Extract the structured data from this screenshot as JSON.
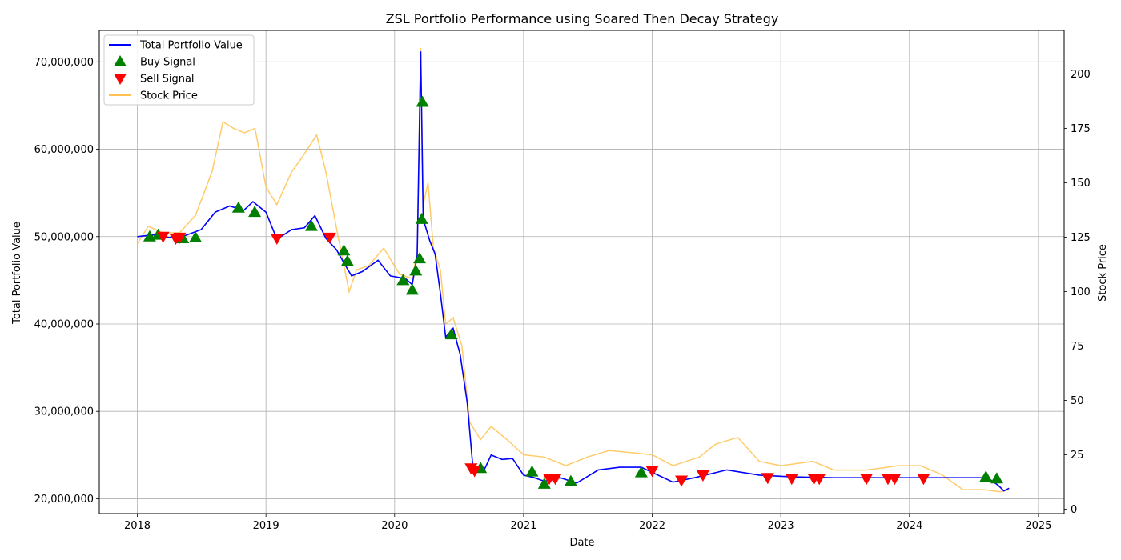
{
  "chart_data": {
    "type": "line",
    "title": "ZSL Portfolio Performance using Soared Then Decay Strategy",
    "xlabel": "Date",
    "ylabel_left": "Total Portfolio Value",
    "ylabel_right": "Stock Price",
    "x_ticks": [
      "2018",
      "2019",
      "2020",
      "2021",
      "2022",
      "2023",
      "2024",
      "2025"
    ],
    "x_range": [
      "2017-09-15",
      "2025-03-15"
    ],
    "y_left_ticks": [
      20000000,
      30000000,
      40000000,
      50000000,
      60000000,
      70000000
    ],
    "y_left_tick_labels": [
      "20,000,000",
      "30,000,000",
      "40,000,000",
      "50,000,000",
      "60,000,000",
      "70,000,000"
    ],
    "y_left_range": [
      18300000,
      73600000
    ],
    "y_right_ticks": [
      0,
      25,
      50,
      75,
      100,
      125,
      150,
      175,
      200
    ],
    "y_right_range": [
      -2,
      220
    ],
    "grid": true,
    "legend_placement": "top-left",
    "legend": [
      {
        "label": "Total Portfolio Value",
        "kind": "line",
        "color": "#0000ff"
      },
      {
        "label": "Buy Signal",
        "kind": "marker-up",
        "color": "#008000"
      },
      {
        "label": "Sell Signal",
        "kind": "marker-down",
        "color": "#ff0000"
      },
      {
        "label": "Stock Price",
        "kind": "line",
        "color": "#ffc250"
      }
    ],
    "series": [
      {
        "name": "Total Portfolio Value",
        "axis": "left",
        "color": "#0000ff",
        "points": [
          [
            "2018-01-01",
            50000000
          ],
          [
            "2018-02-15",
            50200000
          ],
          [
            "2018-04-01",
            49900000
          ],
          [
            "2018-05-15",
            50100000
          ],
          [
            "2018-07-01",
            50800000
          ],
          [
            "2018-08-10",
            52800000
          ],
          [
            "2018-09-20",
            53500000
          ],
          [
            "2018-10-30",
            53000000
          ],
          [
            "2018-11-25",
            54000000
          ],
          [
            "2019-01-01",
            52800000
          ],
          [
            "2019-02-01",
            49700000
          ],
          [
            "2019-03-15",
            50800000
          ],
          [
            "2019-04-20",
            51000000
          ],
          [
            "2019-05-20",
            52400000
          ],
          [
            "2019-06-20",
            49800000
          ],
          [
            "2019-07-20",
            48500000
          ],
          [
            "2019-08-10",
            47000000
          ],
          [
            "2019-09-01",
            45500000
          ],
          [
            "2019-10-01",
            46000000
          ],
          [
            "2019-11-15",
            47300000
          ],
          [
            "2019-12-20",
            45500000
          ],
          [
            "2020-02-01",
            45200000
          ],
          [
            "2020-02-20",
            44500000
          ],
          [
            "2020-03-05",
            47800000
          ],
          [
            "2020-03-15",
            71200000
          ],
          [
            "2020-03-22",
            52000000
          ],
          [
            "2020-04-10",
            49500000
          ],
          [
            "2020-04-25",
            48000000
          ],
          [
            "2020-05-10",
            43500000
          ],
          [
            "2020-05-25",
            38500000
          ],
          [
            "2020-06-15",
            39500000
          ],
          [
            "2020-07-05",
            36500000
          ],
          [
            "2020-07-25",
            31000000
          ],
          [
            "2020-08-10",
            23700000
          ],
          [
            "2020-09-10",
            23200000
          ],
          [
            "2020-10-01",
            25000000
          ],
          [
            "2020-11-01",
            24500000
          ],
          [
            "2020-12-01",
            24600000
          ],
          [
            "2021-01-01",
            22700000
          ],
          [
            "2021-02-01",
            22400000
          ],
          [
            "2021-03-01",
            22000000
          ],
          [
            "2021-04-15",
            22400000
          ],
          [
            "2021-06-01",
            21800000
          ],
          [
            "2021-08-01",
            23300000
          ],
          [
            "2021-10-01",
            23600000
          ],
          [
            "2021-12-01",
            23600000
          ],
          [
            "2022-03-01",
            21900000
          ],
          [
            "2022-05-01",
            22400000
          ],
          [
            "2022-08-01",
            23300000
          ],
          [
            "2022-11-01",
            22700000
          ],
          [
            "2023-02-01",
            22500000
          ],
          [
            "2023-06-01",
            22400000
          ],
          [
            "2024-01-01",
            22400000
          ],
          [
            "2024-08-10",
            22400000
          ],
          [
            "2024-09-10",
            21500000
          ],
          [
            "2024-09-25",
            20900000
          ],
          [
            "2024-10-10",
            21200000
          ]
        ]
      },
      {
        "name": "Stock Price",
        "axis": "right",
        "color": "#ffc250",
        "points": [
          [
            "2018-01-01",
            122
          ],
          [
            "2018-02-01",
            130
          ],
          [
            "2018-03-15",
            127
          ],
          [
            "2018-05-01",
            127
          ],
          [
            "2018-06-15",
            135
          ],
          [
            "2018-08-01",
            155
          ],
          [
            "2018-09-01",
            178
          ],
          [
            "2018-10-01",
            175
          ],
          [
            "2018-11-01",
            173
          ],
          [
            "2018-12-01",
            175
          ],
          [
            "2019-01-01",
            148
          ],
          [
            "2019-02-01",
            140
          ],
          [
            "2019-03-15",
            155
          ],
          [
            "2019-04-15",
            162
          ],
          [
            "2019-05-25",
            172
          ],
          [
            "2019-06-20",
            155
          ],
          [
            "2019-07-25",
            125
          ],
          [
            "2019-08-25",
            100
          ],
          [
            "2019-09-15",
            110
          ],
          [
            "2019-10-20",
            112
          ],
          [
            "2019-12-01",
            120
          ],
          [
            "2020-01-15",
            108
          ],
          [
            "2020-02-20",
            106
          ],
          [
            "2020-03-05",
            118
          ],
          [
            "2020-03-15",
            212
          ],
          [
            "2020-03-22",
            140
          ],
          [
            "2020-04-05",
            150
          ],
          [
            "2020-04-20",
            120
          ],
          [
            "2020-05-10",
            110
          ],
          [
            "2020-05-25",
            85
          ],
          [
            "2020-06-15",
            88
          ],
          [
            "2020-07-10",
            75
          ],
          [
            "2020-08-01",
            40
          ],
          [
            "2020-09-01",
            32
          ],
          [
            "2020-10-01",
            38
          ],
          [
            "2020-11-15",
            32
          ],
          [
            "2021-01-01",
            25
          ],
          [
            "2021-03-01",
            24
          ],
          [
            "2021-05-01",
            20
          ],
          [
            "2021-07-01",
            24
          ],
          [
            "2021-09-01",
            27
          ],
          [
            "2021-11-01",
            26
          ],
          [
            "2022-01-01",
            25
          ],
          [
            "2022-03-01",
            20
          ],
          [
            "2022-05-15",
            24
          ],
          [
            "2022-07-01",
            30
          ],
          [
            "2022-09-01",
            33
          ],
          [
            "2022-11-01",
            22
          ],
          [
            "2023-01-01",
            20
          ],
          [
            "2023-04-01",
            22
          ],
          [
            "2023-06-01",
            18
          ],
          [
            "2023-09-01",
            18
          ],
          [
            "2023-12-01",
            20
          ],
          [
            "2024-02-01",
            20
          ],
          [
            "2024-04-01",
            16
          ],
          [
            "2024-06-01",
            9
          ],
          [
            "2024-08-01",
            9
          ],
          [
            "2024-09-15",
            8
          ],
          [
            "2024-10-10",
            9
          ]
        ]
      }
    ],
    "buy_signals": [
      [
        "2018-02-05",
        50000000
      ],
      [
        "2018-03-01",
        50200000
      ],
      [
        "2018-05-10",
        49800000
      ],
      [
        "2018-06-15",
        49900000
      ],
      [
        "2018-10-15",
        53300000
      ],
      [
        "2018-11-30",
        52800000
      ],
      [
        "2019-05-10",
        51200000
      ],
      [
        "2019-08-10",
        48400000
      ],
      [
        "2019-08-20",
        47200000
      ],
      [
        "2020-01-25",
        45000000
      ],
      [
        "2020-02-20",
        43900000
      ],
      [
        "2020-03-01",
        46100000
      ],
      [
        "2020-03-12",
        47500000
      ],
      [
        "2020-03-18",
        52000000
      ],
      [
        "2020-03-20",
        65400000
      ],
      [
        "2020-06-10",
        38800000
      ],
      [
        "2020-09-01",
        23500000
      ],
      [
        "2021-01-25",
        23100000
      ],
      [
        "2021-03-01",
        21700000
      ],
      [
        "2021-05-15",
        22000000
      ],
      [
        "2021-12-01",
        23000000
      ],
      [
        "2024-08-05",
        22500000
      ],
      [
        "2024-09-05",
        22300000
      ]
    ],
    "sell_signals": [
      [
        "2018-03-15",
        50000000
      ],
      [
        "2018-04-20",
        49800000
      ],
      [
        "2018-05-01",
        49900000
      ],
      [
        "2019-02-01",
        49800000
      ],
      [
        "2019-07-01",
        49900000
      ],
      [
        "2020-08-05",
        23500000
      ],
      [
        "2020-08-15",
        23200000
      ],
      [
        "2021-03-15",
        22300000
      ],
      [
        "2021-04-01",
        22300000
      ],
      [
        "2022-01-01",
        23200000
      ],
      [
        "2022-03-25",
        22100000
      ],
      [
        "2022-05-25",
        22700000
      ],
      [
        "2022-11-25",
        22400000
      ],
      [
        "2023-02-01",
        22300000
      ],
      [
        "2023-04-05",
        22300000
      ],
      [
        "2023-04-20",
        22300000
      ],
      [
        "2023-09-01",
        22300000
      ],
      [
        "2023-11-01",
        22300000
      ],
      [
        "2023-11-20",
        22300000
      ],
      [
        "2024-02-10",
        22300000
      ]
    ]
  }
}
